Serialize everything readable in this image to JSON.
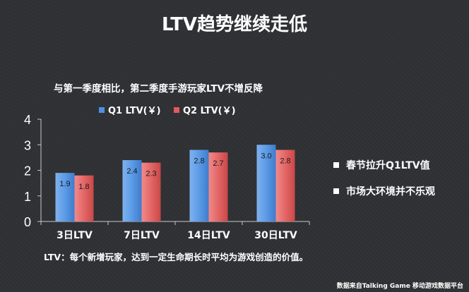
{
  "title": "LTV趋势继续走低",
  "subtitle": "与第一季度相比，第二季度手游玩家LTV不增反降",
  "side_notes": [
    "春节拉升Q1LTV值",
    "市场大环境并不乐观"
  ],
  "footnote": "LTV：每个新增玩家，达到一定生命期长时平均为游戏创造的价值。",
  "source": "数据来自Talking Game 移动游戏数据平台",
  "colors": {
    "background": "#2e3034",
    "q1": "#4f8fe0",
    "q2": "#e35a5a",
    "axis": "#c8c8c8"
  },
  "chart_data": {
    "type": "bar",
    "categories": [
      "3日LTV",
      "7日LTV",
      "14日LTV",
      "30日LTV"
    ],
    "series": [
      {
        "name": "Q1 LTV(￥)",
        "values": [
          1.9,
          2.4,
          2.8,
          3.0
        ],
        "value_labels": [
          "1.9",
          "2.4",
          "2.8",
          "3.0"
        ],
        "color": "#4f8fe0"
      },
      {
        "name": "Q2 LTV(￥)",
        "values": [
          1.8,
          2.3,
          2.7,
          2.8
        ],
        "value_labels": [
          "1.8",
          "2.3",
          "2.7",
          "2.8"
        ],
        "color": "#e35a5a"
      }
    ],
    "ylim": [
      0,
      4
    ],
    "yticks": [
      "0",
      "1",
      "2",
      "3",
      "4"
    ],
    "legend_position": "top",
    "grid": false
  }
}
